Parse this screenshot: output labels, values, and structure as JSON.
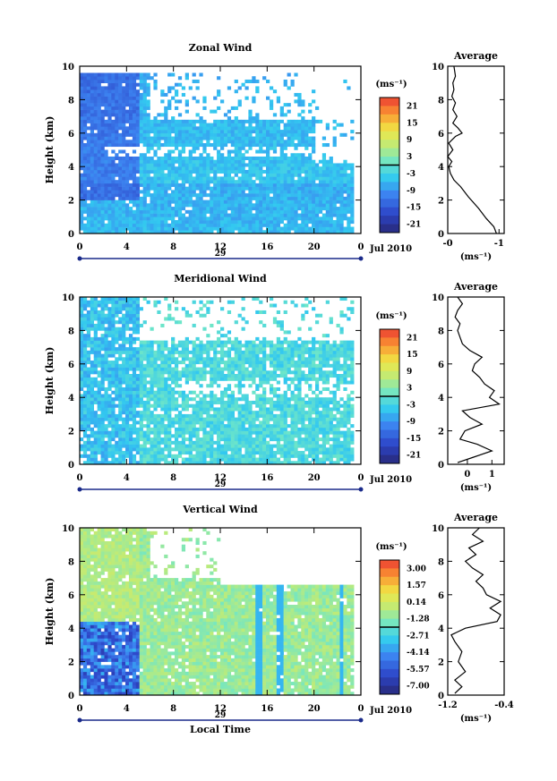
{
  "chart_data": [
    {
      "type": "heatmap",
      "title": "Zonal Wind",
      "ylabel": "Height (km)",
      "xlabel": "",
      "xticks": [
        "0",
        "4",
        "8",
        "12",
        "16",
        "20",
        "0"
      ],
      "yticks": [
        "0",
        "2",
        "4",
        "6",
        "8",
        "10"
      ],
      "xlim": [
        0,
        24
      ],
      "ylim": [
        0,
        10
      ],
      "date_label": "29",
      "date_suffix": "Jul 2010",
      "colorbar": {
        "unit": "(ms⁻¹)",
        "ticks": [
          "21",
          "15",
          "9",
          "3",
          "-3",
          "-9",
          "-15",
          "-21"
        ],
        "range": [
          -24,
          24
        ]
      },
      "profile": {
        "title": "Average",
        "xlabel": "(ms⁻¹)",
        "xticks": [
          "-0",
          "-1"
        ],
        "xlim": [
          0,
          -1.1
        ],
        "yticks": [
          "0",
          "2",
          "4",
          "6",
          "8",
          "10"
        ],
        "points": [
          [
            -0.95,
            0
          ],
          [
            -0.9,
            0.4
          ],
          [
            -0.75,
            0.9
          ],
          [
            -0.6,
            1.5
          ],
          [
            -0.4,
            2.2
          ],
          [
            -0.25,
            2.8
          ],
          [
            -0.12,
            3.2
          ],
          [
            -0.05,
            3.6
          ],
          [
            -0.02,
            4.0
          ],
          [
            -0.08,
            4.3
          ],
          [
            0.0,
            4.6
          ],
          [
            -0.1,
            5.0
          ],
          [
            -0.02,
            5.4
          ],
          [
            -0.15,
            5.8
          ],
          [
            -0.28,
            6.0
          ],
          [
            -0.2,
            6.3
          ],
          [
            -0.1,
            6.6
          ],
          [
            -0.18,
            7.0
          ],
          [
            -0.1,
            7.4
          ],
          [
            -0.15,
            7.8
          ],
          [
            -0.08,
            8.2
          ],
          [
            -0.12,
            8.6
          ],
          [
            -0.1,
            9.0
          ],
          [
            -0.15,
            9.4
          ],
          [
            -0.12,
            10.0
          ]
        ]
      }
    },
    {
      "type": "heatmap",
      "title": "Meridional Wind",
      "ylabel": "Height (km)",
      "xlabel": "",
      "xticks": [
        "0",
        "4",
        "8",
        "12",
        "16",
        "20",
        "0"
      ],
      "yticks": [
        "0",
        "2",
        "4",
        "6",
        "8",
        "10"
      ],
      "xlim": [
        0,
        24
      ],
      "ylim": [
        0,
        10
      ],
      "date_label": "29",
      "date_suffix": "Jul 2010",
      "colorbar": {
        "unit": "(ms⁻¹)",
        "ticks": [
          "21",
          "15",
          "9",
          "3",
          "-3",
          "-9",
          "-15",
          "-21"
        ],
        "range": [
          -24,
          24
        ]
      },
      "profile": {
        "title": "Average",
        "xlabel": "(ms⁻¹)",
        "xticks": [
          "0",
          "1"
        ],
        "xlim": [
          -0.8,
          1.5
        ],
        "yticks": [
          "0",
          "2",
          "4",
          "6",
          "8",
          "10"
        ],
        "points": [
          [
            -0.4,
            0.1
          ],
          [
            0.2,
            0.4
          ],
          [
            1.0,
            0.8
          ],
          [
            0.4,
            1.2
          ],
          [
            -0.3,
            1.5
          ],
          [
            -0.1,
            2.0
          ],
          [
            0.6,
            2.4
          ],
          [
            0.1,
            2.8
          ],
          [
            -0.2,
            3.2
          ],
          [
            1.3,
            3.6
          ],
          [
            0.9,
            4.0
          ],
          [
            1.1,
            4.4
          ],
          [
            0.7,
            4.8
          ],
          [
            0.5,
            5.2
          ],
          [
            0.2,
            5.6
          ],
          [
            0.3,
            6.0
          ],
          [
            0.6,
            6.4
          ],
          [
            0.1,
            6.8
          ],
          [
            -0.2,
            7.2
          ],
          [
            -0.3,
            7.6
          ],
          [
            -0.4,
            8.0
          ],
          [
            -0.3,
            8.4
          ],
          [
            -0.5,
            8.8
          ],
          [
            -0.4,
            9.2
          ],
          [
            -0.2,
            9.6
          ],
          [
            -0.4,
            10.0
          ]
        ]
      }
    },
    {
      "type": "heatmap",
      "title": "Vertical Wind",
      "ylabel": "Height (km)",
      "xlabel": "Local Time",
      "xticks": [
        "0",
        "4",
        "8",
        "12",
        "16",
        "20",
        "0"
      ],
      "yticks": [
        "0",
        "2",
        "4",
        "6",
        "8",
        "10"
      ],
      "xlim": [
        0,
        24
      ],
      "ylim": [
        0,
        10
      ],
      "date_label": "29",
      "date_suffix": "Jul 2010",
      "colorbar": {
        "unit": "(ms⁻¹)",
        "ticks": [
          "3.00",
          "1.57",
          "0.14",
          "-1.28",
          "-2.71",
          "-4.14",
          "-5.57",
          "-7.00"
        ],
        "range": [
          -7.7,
          3.7
        ]
      },
      "profile": {
        "title": "Average",
        "xlabel": "(ms⁻¹)",
        "xticks": [
          "-1.2",
          "-0.4"
        ],
        "xlim": [
          -1.2,
          -0.4
        ],
        "yticks": [
          "0",
          "2",
          "4",
          "6",
          "8",
          "10"
        ],
        "points": [
          [
            -1.1,
            0.1
          ],
          [
            -1.0,
            0.5
          ],
          [
            -1.1,
            0.9
          ],
          [
            -0.95,
            1.4
          ],
          [
            -1.05,
            2.0
          ],
          [
            -1.0,
            2.6
          ],
          [
            -1.1,
            3.2
          ],
          [
            -1.15,
            3.6
          ],
          [
            -0.95,
            4.0
          ],
          [
            -0.5,
            4.4
          ],
          [
            -0.45,
            4.8
          ],
          [
            -0.6,
            5.2
          ],
          [
            -0.45,
            5.6
          ],
          [
            -0.65,
            6.0
          ],
          [
            -0.7,
            6.4
          ],
          [
            -0.8,
            6.8
          ],
          [
            -0.7,
            7.2
          ],
          [
            -0.85,
            7.6
          ],
          [
            -0.95,
            8.0
          ],
          [
            -0.8,
            8.4
          ],
          [
            -0.9,
            8.8
          ],
          [
            -0.7,
            9.2
          ],
          [
            -0.85,
            9.6
          ],
          [
            -0.75,
            10.0
          ]
        ]
      }
    }
  ]
}
